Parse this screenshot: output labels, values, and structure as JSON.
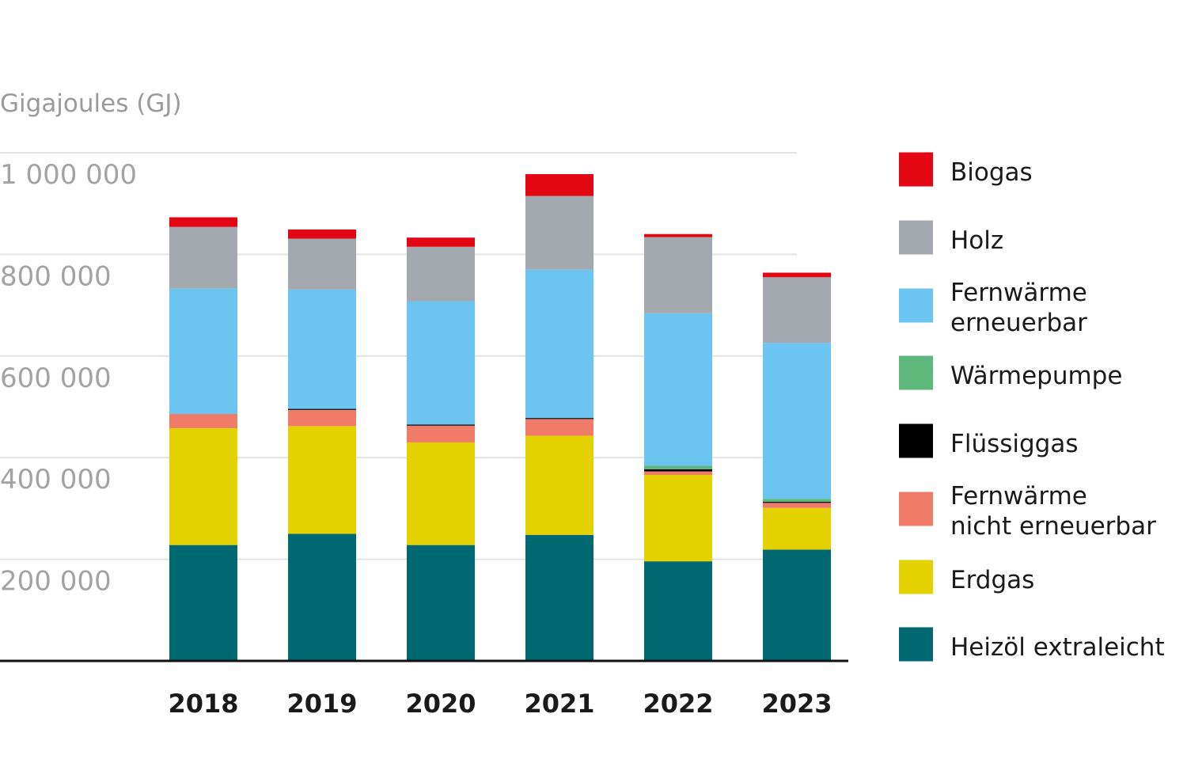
{
  "chart_data": {
    "type": "bar",
    "stacked": true,
    "ylabel": "Gigajoules (GJ)",
    "ylim": [
      0,
      1000000
    ],
    "yticks": [
      200000,
      400000,
      600000,
      800000,
      1000000
    ],
    "ytick_labels": [
      "200 000",
      "400 000",
      "600 000",
      "800 000",
      "1 000 000"
    ],
    "grid": true,
    "legend_position": "right",
    "categories": [
      "2018",
      "2019",
      "2020",
      "2021",
      "2022",
      "2023"
    ],
    "series": [
      {
        "name": "Heizöl extraleicht",
        "color": "#006871",
        "values": [
          228000,
          250000,
          228000,
          248000,
          196000,
          219000
        ]
      },
      {
        "name": "Erdgas",
        "color": "#e3d200",
        "values": [
          230000,
          212000,
          202000,
          195000,
          170000,
          82000
        ]
      },
      {
        "name": "Fernwärme nicht erneuerbar",
        "color": "#f07b68",
        "values": [
          28000,
          32000,
          33000,
          33000,
          7000,
          10000
        ]
      },
      {
        "name": "Flüssiggas",
        "color": "#000000",
        "values": [
          0,
          2000,
          2000,
          2000,
          4000,
          2000
        ]
      },
      {
        "name": "Wärmepumpe",
        "color": "#5eb87c",
        "values": [
          0,
          0,
          0,
          0,
          7000,
          6000
        ]
      },
      {
        "name": "Fernwärme erneuerbar",
        "color": "#6bc5f0",
        "values": [
          247000,
          235000,
          243000,
          292000,
          300000,
          307000
        ]
      },
      {
        "name": "Holz",
        "color": "#a3a9ae",
        "values": [
          121000,
          100000,
          107000,
          145000,
          150000,
          129000
        ]
      },
      {
        "name": "Biogas",
        "color": "#e30613",
        "values": [
          19000,
          18000,
          18000,
          43000,
          6000,
          9000
        ]
      }
    ],
    "legend": [
      {
        "label_lines": [
          "Biogas"
        ],
        "color": "#e30613"
      },
      {
        "label_lines": [
          "Holz"
        ],
        "color": "#a3a9ae"
      },
      {
        "label_lines": [
          "Fernwärme",
          "erneuerbar"
        ],
        "color": "#6bc5f0"
      },
      {
        "label_lines": [
          "Wärmepumpe"
        ],
        "color": "#5eb87c"
      },
      {
        "label_lines": [
          "Flüssiggas"
        ],
        "color": "#000000"
      },
      {
        "label_lines": [
          "Fernwärme",
          "nicht erneuerbar"
        ],
        "color": "#f07b68"
      },
      {
        "label_lines": [
          "Erdgas"
        ],
        "color": "#e3d200"
      },
      {
        "label_lines": [
          "Heizöl extraleicht"
        ],
        "color": "#006871"
      }
    ]
  }
}
